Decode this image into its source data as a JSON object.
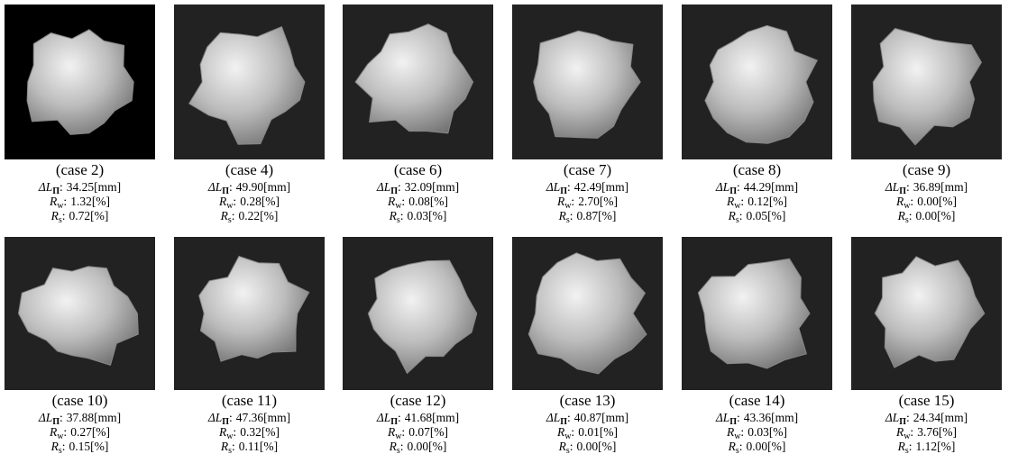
{
  "labels": {
    "delta": "ΔL",
    "delta_sub": "Π",
    "rw": "R",
    "rw_sub": "w",
    "rs": "R",
    "rs_sub": "s",
    "sep": ":"
  },
  "panels": [
    {
      "case": "(case 2)",
      "delta_l": "34.25[mm]",
      "r_w": "1.32[%]",
      "r_s": "0.72[%]"
    },
    {
      "case": "(case 4)",
      "delta_l": "49.90[mm]",
      "r_w": "0.28[%]",
      "r_s": "0.22[%]"
    },
    {
      "case": "(case 6)",
      "delta_l": "32.09[mm]",
      "r_w": "0.08[%]",
      "r_s": "0.03[%]"
    },
    {
      "case": "(case 7)",
      "delta_l": "42.49[mm]",
      "r_w": "2.70[%]",
      "r_s": "0.87[%]"
    },
    {
      "case": "(case 8)",
      "delta_l": "44.29[mm]",
      "r_w": "0.12[%]",
      "r_s": "0.05[%]"
    },
    {
      "case": "(case 9)",
      "delta_l": "36.89[mm]",
      "r_w": "0.00[%]",
      "r_s": "0.00[%]"
    },
    {
      "case": "(case 10)",
      "delta_l": "37.88[mm]",
      "r_w": "0.27[%]",
      "r_s": "0.15[%]"
    },
    {
      "case": "(case 11)",
      "delta_l": "47.36[mm]",
      "r_w": "0.32[%]",
      "r_s": "0.11[%]"
    },
    {
      "case": "(case 12)",
      "delta_l": "41.68[mm]",
      "r_w": "0.07[%]",
      "r_s": "0.00[%]"
    },
    {
      "case": "(case 13)",
      "delta_l": "40.87[mm]",
      "r_w": "0.01[%]",
      "r_s": "0.00[%]"
    },
    {
      "case": "(case 14)",
      "delta_l": "43.36[mm]",
      "r_w": "0.03[%]",
      "r_s": "0.00[%]"
    },
    {
      "case": "(case 15)",
      "delta_l": "24.34[mm]",
      "r_w": "3.76[%]",
      "r_s": "1.12[%]"
    }
  ]
}
